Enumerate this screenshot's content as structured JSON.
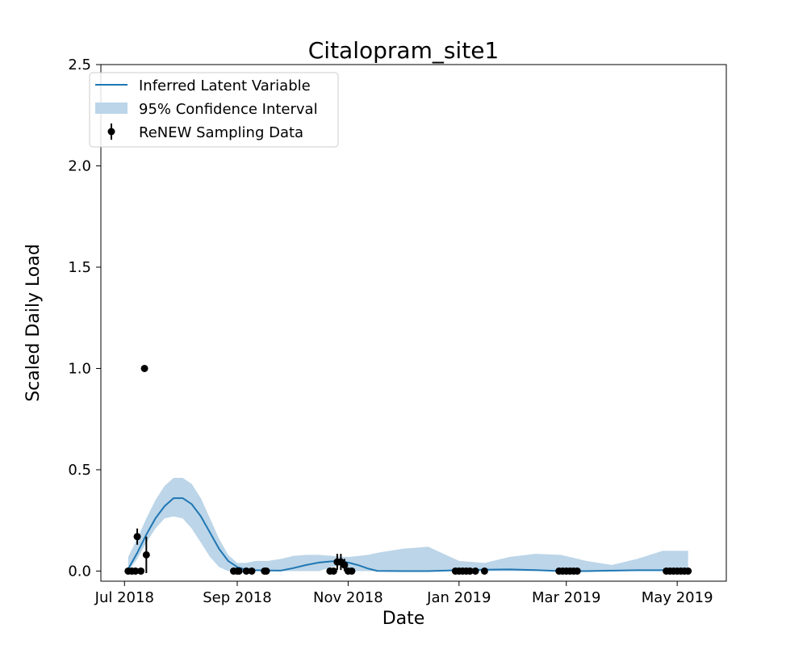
{
  "chart_data": {
    "type": "line",
    "title": "Citalopram_site1",
    "xlabel": "Date",
    "ylabel": "Scaled Daily Load",
    "xlim": [
      "2018-06-18",
      "2019-05-28"
    ],
    "ylim": [
      -0.05,
      2.5
    ],
    "x_ticks": [
      {
        "date": "2018-07-01",
        "label": "Jul 2018"
      },
      {
        "date": "2018-09-01",
        "label": "Sep 2018"
      },
      {
        "date": "2018-11-01",
        "label": "Nov 2018"
      },
      {
        "date": "2019-01-01",
        "label": "Jan 2019"
      },
      {
        "date": "2019-03-01",
        "label": "Mar 2019"
      },
      {
        "date": "2019-05-01",
        "label": "May 2019"
      }
    ],
    "y_ticks": [
      {
        "value": 0.0,
        "label": "0.0"
      },
      {
        "value": 0.5,
        "label": "0.5"
      },
      {
        "value": 1.0,
        "label": "1.0"
      },
      {
        "value": 1.5,
        "label": "1.5"
      },
      {
        "value": 2.0,
        "label": "2.0"
      },
      {
        "value": 2.5,
        "label": "2.5"
      }
    ],
    "grid": false,
    "legend_position": "top-left",
    "legend": [
      {
        "key": "line",
        "label": "Inferred Latent Variable"
      },
      {
        "key": "band",
        "label": "95% Confidence Interval"
      },
      {
        "key": "points",
        "label": "ReNEW Sampling Data"
      }
    ],
    "colors": {
      "line": "#1f77b4",
      "band": "#bcd5e8",
      "points": "#000000"
    },
    "latent_variable": {
      "name": "Inferred Latent Variable",
      "x": [
        "2018-07-03",
        "2018-07-08",
        "2018-07-13",
        "2018-07-18",
        "2018-07-23",
        "2018-07-28",
        "2018-08-02",
        "2018-08-07",
        "2018-08-12",
        "2018-08-17",
        "2018-08-22",
        "2018-08-27",
        "2018-09-01",
        "2018-09-06",
        "2018-09-11",
        "2018-09-18",
        "2018-09-25",
        "2018-10-02",
        "2018-10-09",
        "2018-10-16",
        "2018-10-23",
        "2018-10-28",
        "2018-11-02",
        "2018-11-07",
        "2018-11-12",
        "2018-11-17",
        "2018-12-01",
        "2018-12-15",
        "2019-01-01",
        "2019-01-15",
        "2019-01-29",
        "2019-02-12",
        "2019-02-26",
        "2019-03-12",
        "2019-03-26",
        "2019-04-09",
        "2019-04-23",
        "2019-05-07"
      ],
      "y": [
        0.01,
        0.09,
        0.18,
        0.26,
        0.32,
        0.36,
        0.36,
        0.33,
        0.27,
        0.19,
        0.11,
        0.05,
        0.02,
        0.006,
        0.004,
        0.003,
        0.002,
        0.015,
        0.03,
        0.042,
        0.048,
        0.049,
        0.04,
        0.028,
        0.012,
        0.001,
        0.0,
        0.0,
        0.004,
        0.007,
        0.008,
        0.005,
        0.0,
        0.0,
        0.002,
        0.004,
        0.004,
        0.002
      ]
    },
    "confidence_interval": {
      "name": "95% Confidence Interval",
      "x": [
        "2018-07-03",
        "2018-07-08",
        "2018-07-13",
        "2018-07-18",
        "2018-07-23",
        "2018-07-28",
        "2018-08-02",
        "2018-08-07",
        "2018-08-12",
        "2018-08-17",
        "2018-08-22",
        "2018-08-27",
        "2018-09-01",
        "2018-09-06",
        "2018-09-11",
        "2018-09-18",
        "2018-09-25",
        "2018-10-02",
        "2018-10-09",
        "2018-10-16",
        "2018-10-23",
        "2018-10-28",
        "2018-11-02",
        "2018-11-07",
        "2018-11-12",
        "2018-11-17",
        "2018-12-01",
        "2018-12-15",
        "2019-01-01",
        "2019-01-15",
        "2019-01-29",
        "2019-02-12",
        "2019-02-26",
        "2019-03-12",
        "2019-03-26",
        "2019-04-09",
        "2019-04-23",
        "2019-05-07"
      ],
      "lower": [
        0.0,
        0.06,
        0.14,
        0.21,
        0.26,
        0.27,
        0.26,
        0.21,
        0.14,
        0.07,
        0.02,
        0.0,
        0.0,
        0.0,
        0.0,
        0.0,
        0.0,
        0.0,
        0.0,
        0.0,
        0.02,
        0.03,
        0.0,
        0.0,
        0.0,
        0.0,
        0.0,
        0.0,
        0.0,
        0.0,
        0.0,
        0.0,
        0.0,
        0.0,
        0.0,
        0.0,
        0.0,
        0.0
      ],
      "upper": [
        0.07,
        0.16,
        0.26,
        0.35,
        0.42,
        0.46,
        0.46,
        0.43,
        0.36,
        0.26,
        0.16,
        0.08,
        0.04,
        0.04,
        0.05,
        0.05,
        0.06,
        0.075,
        0.08,
        0.08,
        0.075,
        0.07,
        0.07,
        0.075,
        0.08,
        0.09,
        0.11,
        0.12,
        0.05,
        0.04,
        0.07,
        0.085,
        0.08,
        0.05,
        0.03,
        0.06,
        0.1,
        0.1
      ]
    },
    "sampling_data": {
      "name": "ReNEW Sampling Data",
      "points": [
        {
          "x": "2018-07-03",
          "y": 0.0
        },
        {
          "x": "2018-07-05",
          "y": 0.0
        },
        {
          "x": "2018-07-07",
          "y": 0.0
        },
        {
          "x": "2018-07-08",
          "y": 0.17,
          "err": 0.04
        },
        {
          "x": "2018-07-10",
          "y": 0.0
        },
        {
          "x": "2018-07-12",
          "y": 1.0
        },
        {
          "x": "2018-07-13",
          "y": 0.08,
          "err": 0.09
        },
        {
          "x": "2018-08-30",
          "y": 0.0
        },
        {
          "x": "2018-09-01",
          "y": 0.0
        },
        {
          "x": "2018-09-02",
          "y": 0.0
        },
        {
          "x": "2018-09-06",
          "y": 0.0
        },
        {
          "x": "2018-09-09",
          "y": 0.0
        },
        {
          "x": "2018-09-16",
          "y": 0.0
        },
        {
          "x": "2018-09-17",
          "y": 0.0
        },
        {
          "x": "2018-10-22",
          "y": 0.0
        },
        {
          "x": "2018-10-24",
          "y": 0.0
        },
        {
          "x": "2018-10-26",
          "y": 0.045,
          "err": 0.04
        },
        {
          "x": "2018-10-28",
          "y": 0.045,
          "err": 0.04
        },
        {
          "x": "2018-10-30",
          "y": 0.03,
          "err": 0.03
        },
        {
          "x": "2018-11-01",
          "y": 0.0
        },
        {
          "x": "2018-11-03",
          "y": 0.0
        },
        {
          "x": "2018-12-30",
          "y": 0.0
        },
        {
          "x": "2019-01-01",
          "y": 0.0
        },
        {
          "x": "2019-01-03",
          "y": 0.0
        },
        {
          "x": "2019-01-05",
          "y": 0.0
        },
        {
          "x": "2019-01-07",
          "y": 0.0
        },
        {
          "x": "2019-01-10",
          "y": 0.0
        },
        {
          "x": "2019-01-15",
          "y": 0.0
        },
        {
          "x": "2019-02-25",
          "y": 0.0
        },
        {
          "x": "2019-02-27",
          "y": 0.0
        },
        {
          "x": "2019-03-01",
          "y": 0.0
        },
        {
          "x": "2019-03-03",
          "y": 0.0
        },
        {
          "x": "2019-03-05",
          "y": 0.0
        },
        {
          "x": "2019-03-07",
          "y": 0.0
        },
        {
          "x": "2019-04-25",
          "y": 0.0
        },
        {
          "x": "2019-04-27",
          "y": 0.0
        },
        {
          "x": "2019-04-29",
          "y": 0.0
        },
        {
          "x": "2019-05-01",
          "y": 0.0
        },
        {
          "x": "2019-05-03",
          "y": 0.0
        },
        {
          "x": "2019-05-05",
          "y": 0.0
        },
        {
          "x": "2019-05-07",
          "y": 0.0
        }
      ]
    }
  }
}
